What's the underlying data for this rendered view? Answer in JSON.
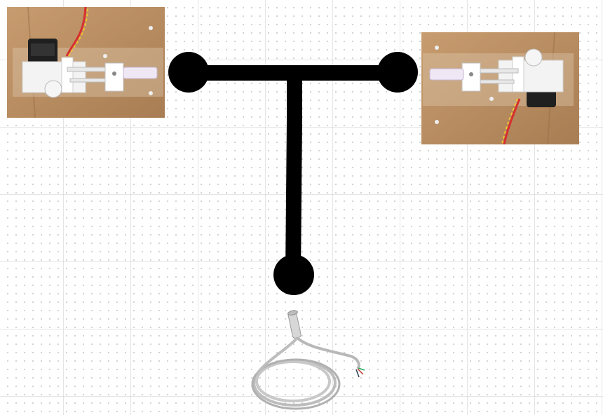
{
  "diagram": {
    "background": "#ffffff",
    "connector_color": "#000000",
    "node_color": "#000000",
    "components": [
      {
        "id": "left-actuator",
        "icon": "linear-actuator-photo",
        "photo_bg": "#b98f63"
      },
      {
        "id": "right-actuator",
        "icon": "linear-actuator-photo",
        "photo_bg": "#b98f63"
      },
      {
        "id": "bottom-sensor",
        "icon": "cable-sensor-probe-photo",
        "cable_color": "#c4c4c4"
      }
    ],
    "connections": [
      {
        "from": "left-actuator",
        "to": "junction",
        "shape": "T-connector"
      },
      {
        "from": "right-actuator",
        "to": "junction",
        "shape": "T-connector"
      },
      {
        "from": "junction",
        "to": "bottom-sensor",
        "shape": "T-connector"
      }
    ]
  }
}
